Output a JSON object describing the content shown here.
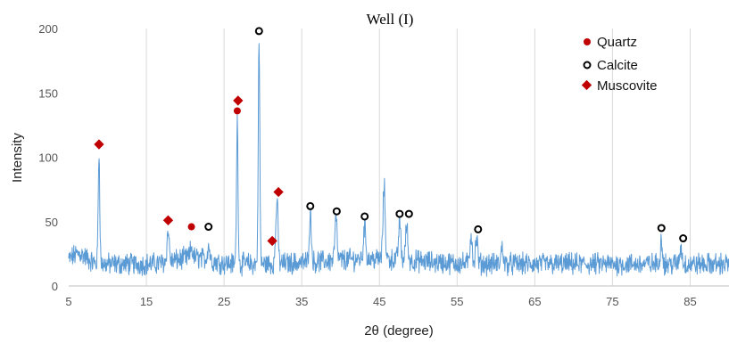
{
  "chart_data": {
    "type": "line",
    "title": "Well (I)",
    "xlabel": "2θ (degree)",
    "ylabel": "Intensity",
    "xlim": [
      5,
      90
    ],
    "ylim": [
      0,
      200
    ],
    "x_ticks": [
      "5",
      "15",
      "25",
      "35",
      "45",
      "55",
      "65",
      "75",
      "85"
    ],
    "y_ticks": [
      "0",
      "50",
      "100",
      "150",
      "200"
    ],
    "grid": "vertical",
    "legend_position": "top-right",
    "colors": {
      "pattern": "#5b9bd5",
      "quartz": "#c00000",
      "calcite": "#000000",
      "muscovite": "#c00000",
      "axis": "#bfbfbf"
    },
    "pattern_peaks": [
      {
        "x": 8.9,
        "y": 104
      },
      {
        "x": 17.8,
        "y": 43
      },
      {
        "x": 20.8,
        "y": 30
      },
      {
        "x": 23.0,
        "y": 32
      },
      {
        "x": 26.7,
        "y": 128
      },
      {
        "x": 29.5,
        "y": 190
      },
      {
        "x": 31.8,
        "y": 66
      },
      {
        "x": 36.1,
        "y": 56
      },
      {
        "x": 39.4,
        "y": 52
      },
      {
        "x": 43.1,
        "y": 48
      },
      {
        "x": 45.6,
        "y": 78
      },
      {
        "x": 47.6,
        "y": 50
      },
      {
        "x": 48.5,
        "y": 47
      },
      {
        "x": 56.8,
        "y": 41
      },
      {
        "x": 57.5,
        "y": 37
      },
      {
        "x": 60.8,
        "y": 30
      },
      {
        "x": 81.3,
        "y": 36
      },
      {
        "x": 83.8,
        "y": 30
      }
    ],
    "series": [
      {
        "name": "Quartz",
        "marker": "filled-circle",
        "points": [
          {
            "x": 20.8,
            "y": 46
          },
          {
            "x": 26.7,
            "y": 136
          }
        ]
      },
      {
        "name": "Calcite",
        "marker": "open-circle",
        "points": [
          {
            "x": 23.0,
            "y": 46
          },
          {
            "x": 29.5,
            "y": 198
          },
          {
            "x": 36.1,
            "y": 62
          },
          {
            "x": 39.5,
            "y": 58
          },
          {
            "x": 43.1,
            "y": 54
          },
          {
            "x": 47.6,
            "y": 56
          },
          {
            "x": 48.8,
            "y": 56
          },
          {
            "x": 57.7,
            "y": 44
          },
          {
            "x": 81.3,
            "y": 45
          },
          {
            "x": 84.1,
            "y": 37
          }
        ]
      },
      {
        "name": "Muscovite",
        "marker": "diamond",
        "points": [
          {
            "x": 8.9,
            "y": 110
          },
          {
            "x": 17.8,
            "y": 51
          },
          {
            "x": 26.8,
            "y": 144
          },
          {
            "x": 31.2,
            "y": 35
          },
          {
            "x": 32.0,
            "y": 73
          }
        ]
      }
    ]
  }
}
